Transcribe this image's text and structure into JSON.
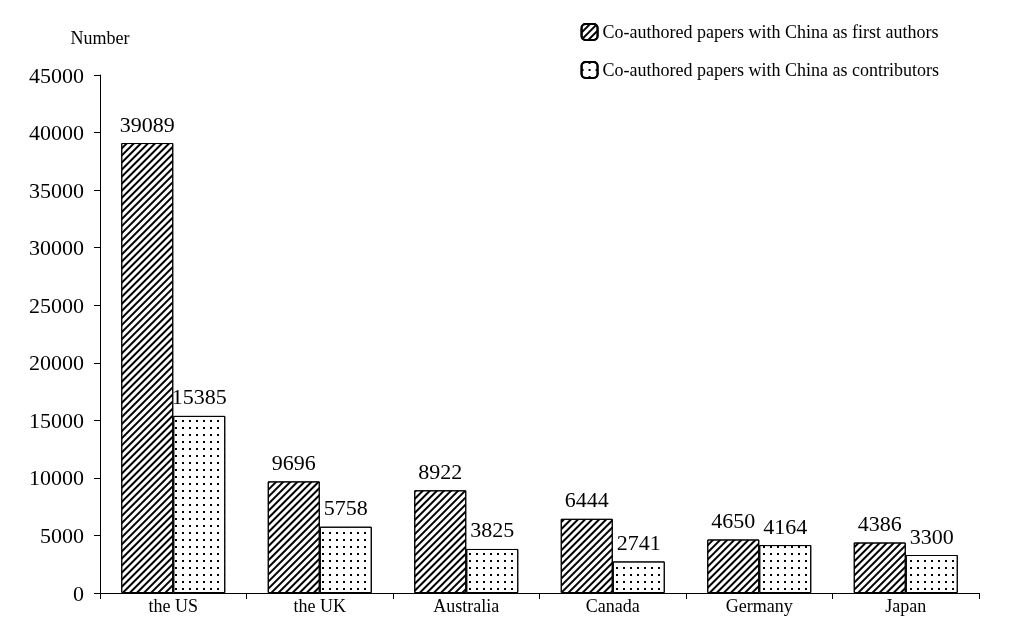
{
  "chart_data": {
    "type": "bar",
    "ylabel": "Number",
    "categories": [
      "the US",
      "the UK",
      "Australia",
      "Canada",
      "Germany",
      "Japan"
    ],
    "series": [
      {
        "name": "Co-authored papers with China as first authors",
        "color": "#ffffff",
        "values": [
          39089,
          9696,
          8922,
          6444,
          4650,
          4386
        ]
      },
      {
        "name": "Co-authored papers with China as contributors",
        "color": "#ffffff",
        "values": [
          15385,
          5758,
          3825,
          2741,
          4164,
          3300
        ]
      }
    ],
    "ylim": [
      0,
      45000
    ],
    "yticks": [
      0,
      5000,
      10000,
      15000,
      20000,
      25000,
      30000,
      35000,
      40000,
      45000
    ],
    "grid": false,
    "legend": "top right",
    "data_labels": true
  }
}
